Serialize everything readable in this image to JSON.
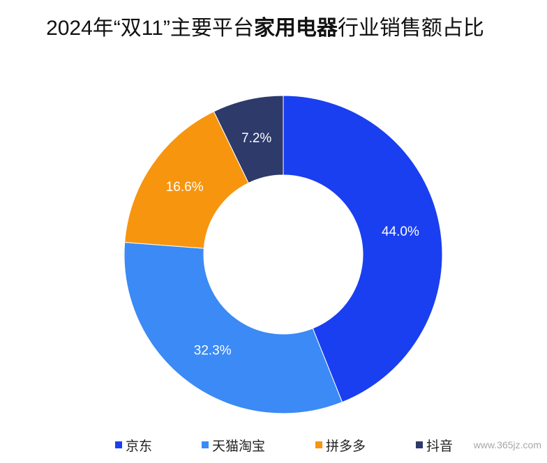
{
  "chart_data": {
    "type": "pie",
    "donut": true,
    "title": [
      "2024年“双11”主要平台",
      "家用电器",
      "行业销售额占比"
    ],
    "categories": [
      "京东",
      "天猫淘宝",
      "拼多多",
      "抖音"
    ],
    "values": [
      44.0,
      32.3,
      16.6,
      7.2
    ],
    "data_labels": [
      "44.0%",
      "32.3%",
      "16.6%",
      "7.2%"
    ],
    "colors": [
      "#1a3ff0",
      "#3b8af5",
      "#f7950e",
      "#2d3a6a"
    ],
    "legend": "bottom"
  },
  "watermark": "www.365jz.com"
}
